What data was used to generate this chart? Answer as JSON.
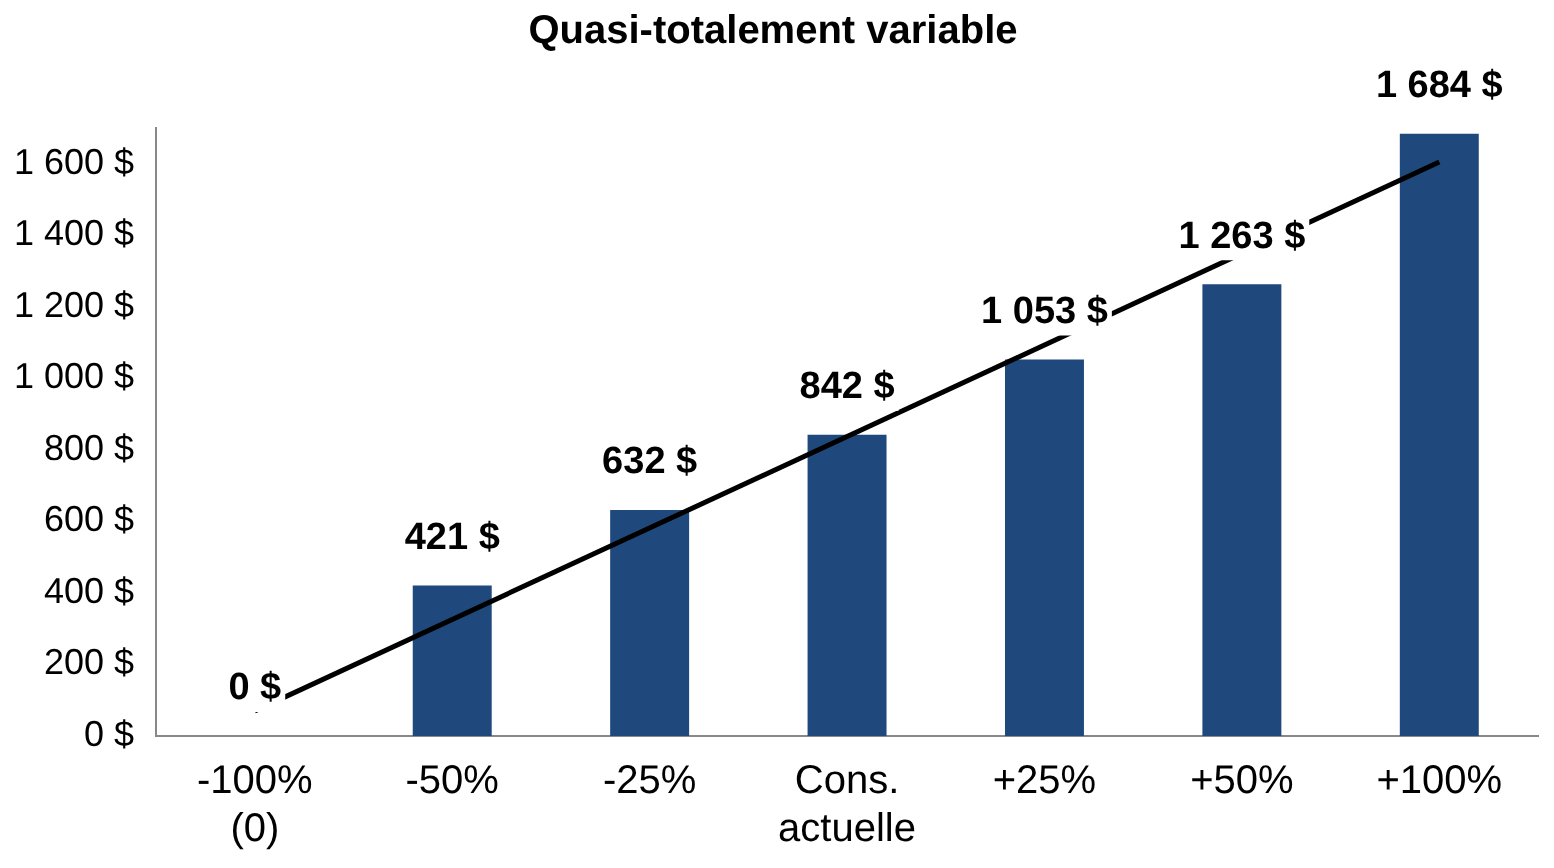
{
  "chart_data": {
    "type": "bar",
    "title": "Quasi-totalement variable",
    "categories": [
      "-100%\n(0)",
      "-50%",
      "-25%",
      "Cons.\nactuelle",
      "+25%",
      "+50%",
      "+100%"
    ],
    "series": [
      {
        "color": "#1f497d",
        "values": [
          0,
          421,
          632,
          842,
          1053,
          1263,
          1684
        ],
        "value_labels": [
          "0 $",
          "421 $",
          "632 $",
          "842 $",
          "1 053 $",
          "1 263 $",
          "1 684 $"
        ]
      },
      {
        "type": "line",
        "color": "#000000",
        "x": [
          "-100%\n(0)",
          "+100%"
        ],
        "values": [
          70,
          1605
        ]
      }
    ],
    "ylim": [
      0,
      1700
    ],
    "yticks": [
      {
        "value": 0,
        "label": "0 $"
      },
      {
        "value": 200,
        "label": "200 $"
      },
      {
        "value": 400,
        "label": "400 $"
      },
      {
        "value": 600,
        "label": "600 $"
      },
      {
        "value": 800,
        "label": "800 $"
      },
      {
        "value": 1000,
        "label": "1 000 $"
      },
      {
        "value": 1200,
        "label": "1 200 $"
      },
      {
        "value": 1400,
        "label": "1 400 $"
      },
      {
        "value": 1600,
        "label": "1 600 $"
      }
    ],
    "grid": false,
    "legend": false,
    "marker": "none"
  }
}
